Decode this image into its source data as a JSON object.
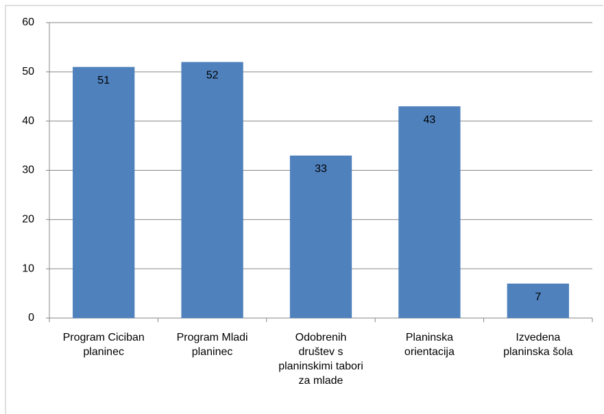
{
  "chart_data": {
    "type": "bar",
    "categories": [
      "Program Ciciban planinec",
      "Program Mladi planinec",
      "Odobrenih društev s planinskimi tabori za mlade",
      "Planinska orientacija",
      "Izvedena planinska šola"
    ],
    "values": [
      51,
      52,
      33,
      43,
      7
    ],
    "color": "#4f81bd",
    "ylim": [
      0,
      60
    ],
    "yticks": [
      0,
      10,
      20,
      30,
      40,
      50,
      60
    ],
    "grid": true
  }
}
